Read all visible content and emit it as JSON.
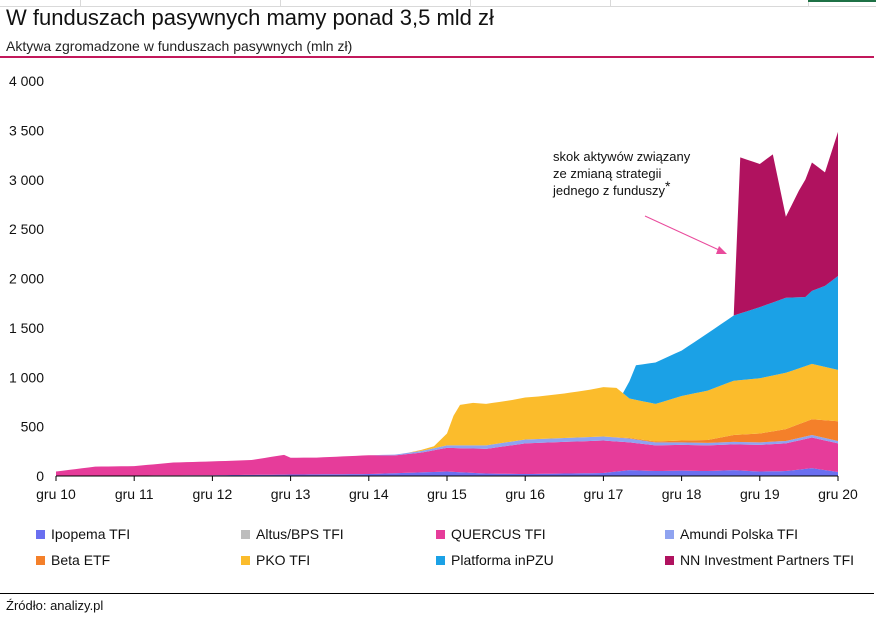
{
  "title": "W funduszach pasywnych mamy ponad 3,5 mld zł",
  "subtitle": "Aktywa zgromadzone w funduszach pasywnych (mln zł)",
  "source": "Źródło: analizy.pl",
  "annotation": {
    "lines": [
      "skok aktywów związany",
      "ze zmianą strategii",
      "jednego z funduszy"
    ],
    "asterisk": "*",
    "color": "#e94b9c"
  },
  "chart_data": {
    "type": "area",
    "stacked": true,
    "ylim": [
      0,
      4000
    ],
    "yticks": [
      0,
      500,
      1000,
      1500,
      2000,
      2500,
      3000,
      3500,
      4000
    ],
    "ytick_labels": [
      "0",
      "500",
      "1 000",
      "1 500",
      "2 000",
      "2 500",
      "3 000",
      "3 500",
      "4 000"
    ],
    "xlim": [
      0,
      120
    ],
    "xticks": [
      0,
      12,
      24,
      36,
      48,
      60,
      72,
      84,
      96,
      108,
      120
    ],
    "xtick_labels": [
      "gru 10",
      "gru 11",
      "gru 12",
      "gru 13",
      "gru 14",
      "gru 15",
      "gru 16",
      "gru 17",
      "gru 18",
      "gru 19",
      "gru 20"
    ],
    "x_unit": "months since Dec 2010",
    "series": [
      {
        "name": "Ipopema TFI",
        "color": "#6a6ff0",
        "points": [
          [
            0,
            5
          ],
          [
            12,
            5
          ],
          [
            24,
            8
          ],
          [
            36,
            15
          ],
          [
            48,
            20
          ],
          [
            60,
            45
          ],
          [
            66,
            25
          ],
          [
            72,
            20
          ],
          [
            84,
            30
          ],
          [
            88,
            60
          ],
          [
            92,
            50
          ],
          [
            96,
            55
          ],
          [
            100,
            50
          ],
          [
            104,
            60
          ],
          [
            108,
            45
          ],
          [
            112,
            50
          ],
          [
            116,
            80
          ],
          [
            120,
            40
          ]
        ]
      },
      {
        "name": "Altus/BPS TFI",
        "color": "#bdbdbd",
        "points": [
          [
            0,
            0
          ],
          [
            12,
            0
          ],
          [
            24,
            0
          ],
          [
            36,
            0
          ],
          [
            48,
            0
          ],
          [
            60,
            0
          ],
          [
            72,
            0
          ],
          [
            84,
            0
          ],
          [
            96,
            0
          ],
          [
            108,
            0
          ],
          [
            120,
            0
          ]
        ]
      },
      {
        "name": "QUERCUS TFI",
        "color": "#e63c9a",
        "points": [
          [
            0,
            40
          ],
          [
            6,
            90
          ],
          [
            12,
            95
          ],
          [
            18,
            130
          ],
          [
            24,
            140
          ],
          [
            30,
            150
          ],
          [
            35,
            200
          ],
          [
            36,
            170
          ],
          [
            40,
            170
          ],
          [
            44,
            180
          ],
          [
            48,
            190
          ],
          [
            52,
            180
          ],
          [
            56,
            200
          ],
          [
            60,
            240
          ],
          [
            66,
            250
          ],
          [
            72,
            310
          ],
          [
            78,
            320
          ],
          [
            84,
            330
          ],
          [
            88,
            280
          ],
          [
            92,
            260
          ],
          [
            96,
            260
          ],
          [
            100,
            260
          ],
          [
            104,
            260
          ],
          [
            108,
            270
          ],
          [
            112,
            280
          ],
          [
            116,
            310
          ],
          [
            120,
            290
          ]
        ]
      },
      {
        "name": "Amundi Polska TFI",
        "color": "#8fa3f0",
        "points": [
          [
            0,
            0
          ],
          [
            48,
            0
          ],
          [
            60,
            25
          ],
          [
            66,
            35
          ],
          [
            72,
            40
          ],
          [
            78,
            40
          ],
          [
            84,
            40
          ],
          [
            88,
            40
          ],
          [
            92,
            30
          ],
          [
            96,
            25
          ],
          [
            100,
            25
          ],
          [
            104,
            25
          ],
          [
            108,
            25
          ],
          [
            112,
            25
          ],
          [
            116,
            25
          ],
          [
            120,
            25
          ]
        ]
      },
      {
        "name": "Beta ETF",
        "color": "#f4802a",
        "points": [
          [
            0,
            0
          ],
          [
            84,
            0
          ],
          [
            92,
            10
          ],
          [
            96,
            20
          ],
          [
            100,
            30
          ],
          [
            104,
            70
          ],
          [
            108,
            90
          ],
          [
            112,
            120
          ],
          [
            116,
            160
          ],
          [
            120,
            200
          ]
        ]
      },
      {
        "name": "PKO TFI",
        "color": "#fbbc2c",
        "points": [
          [
            0,
            0
          ],
          [
            54,
            0
          ],
          [
            58,
            20
          ],
          [
            60,
            120
          ],
          [
            61,
            300
          ],
          [
            62,
            410
          ],
          [
            64,
            430
          ],
          [
            66,
            420
          ],
          [
            70,
            420
          ],
          [
            74,
            430
          ],
          [
            78,
            450
          ],
          [
            82,
            480
          ],
          [
            84,
            500
          ],
          [
            86,
            500
          ],
          [
            88,
            400
          ],
          [
            92,
            380
          ],
          [
            96,
            450
          ],
          [
            100,
            500
          ],
          [
            104,
            550
          ],
          [
            108,
            560
          ],
          [
            112,
            570
          ],
          [
            116,
            560
          ],
          [
            120,
            520
          ]
        ]
      },
      {
        "name": "Platforma inPZU",
        "color": "#1ba1e6",
        "points": [
          [
            0,
            0
          ],
          [
            87,
            0
          ],
          [
            89,
            350
          ],
          [
            92,
            420
          ],
          [
            96,
            460
          ],
          [
            100,
            580
          ],
          [
            104,
            660
          ],
          [
            108,
            720
          ],
          [
            112,
            760
          ],
          [
            115,
            700
          ],
          [
            118,
            820
          ],
          [
            120,
            950
          ]
        ]
      },
      {
        "name": "NN Investment Partners TFI",
        "color": "#b0125f",
        "points": [
          [
            0,
            0
          ],
          [
            104,
            0
          ],
          [
            105,
            1580
          ],
          [
            108,
            1450
          ],
          [
            110,
            1500
          ],
          [
            112,
            820
          ],
          [
            114,
            1080
          ],
          [
            116,
            1300
          ],
          [
            118,
            1150
          ],
          [
            120,
            1460
          ]
        ]
      }
    ]
  }
}
